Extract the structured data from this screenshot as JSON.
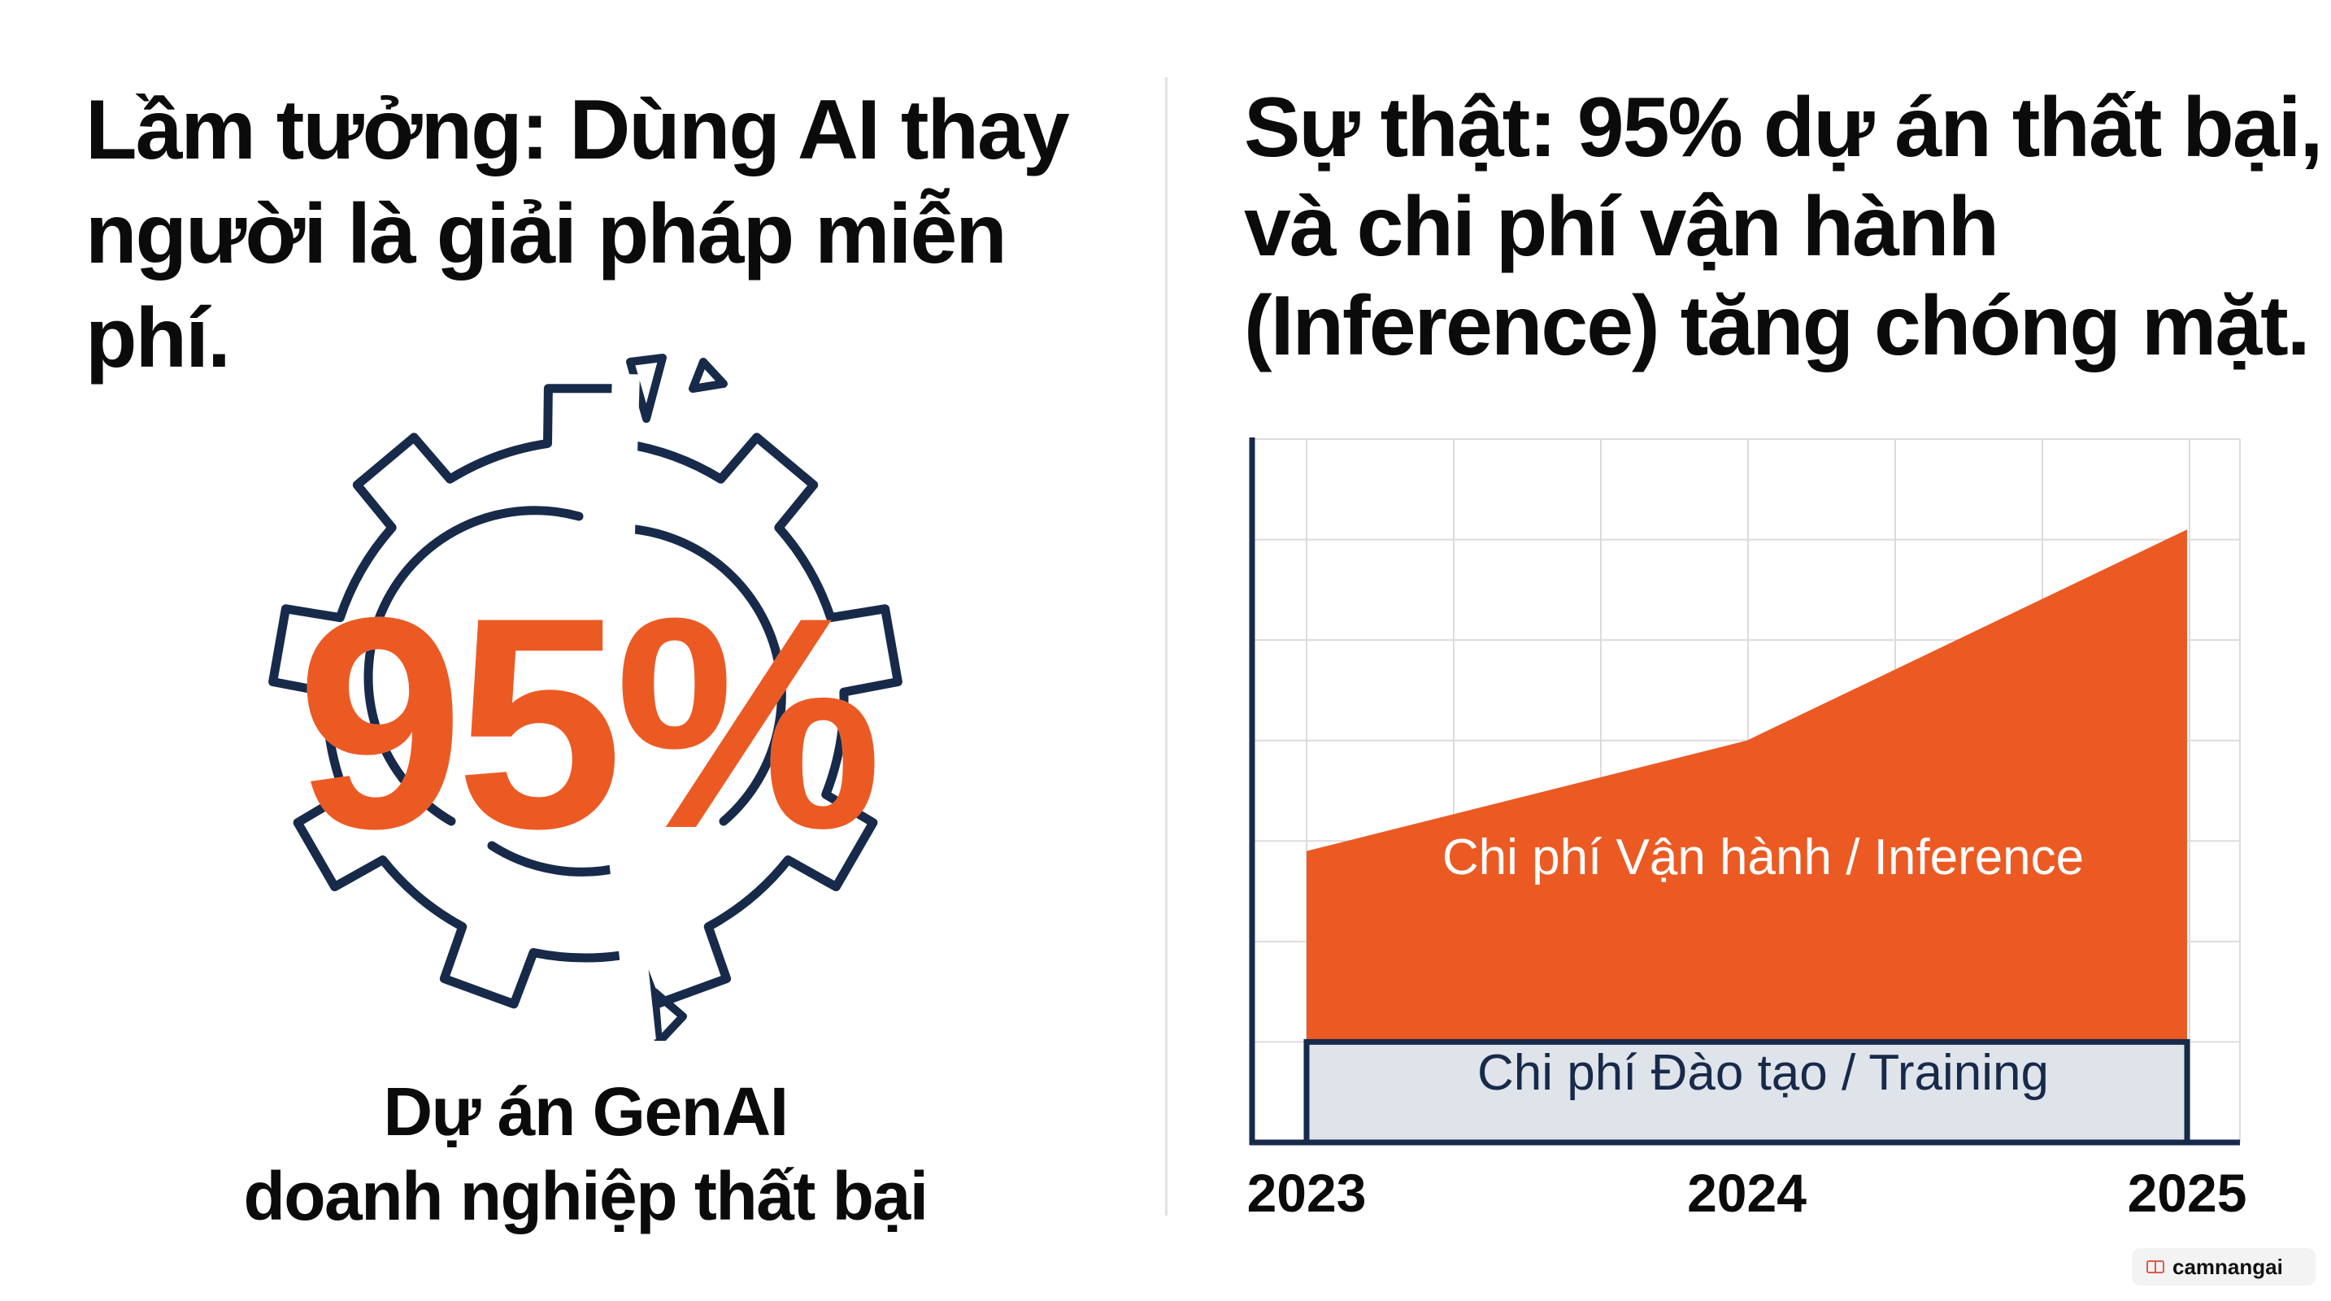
{
  "left_panel": {
    "title_line1": "Lầm tưởng: Dùng AI thay",
    "title_line2": "người là giải pháp miễn phí.",
    "stat_value": "95%",
    "caption_line1": "Dự án GenAI",
    "caption_line2": "doanh nghiệp thất bại",
    "icon": "broken-gear-icon"
  },
  "right_panel": {
    "title_line1": "Sự thật: 95% dự án thất bại,",
    "title_line2": "và chi phí vận hành",
    "title_line3": "(Inference) tăng chóng mặt."
  },
  "chart_data": {
    "type": "area",
    "stacked": true,
    "x": [
      "2023",
      "2024",
      "2025"
    ],
    "series": [
      {
        "name": "Chi phí Đào tạo / Training",
        "values": [
          1.0,
          1.0,
          1.0
        ],
        "color": "#dfe3ea"
      },
      {
        "name": "Chi phí Vận hành / Inference",
        "values": [
          1.9,
          3.0,
          5.1
        ],
        "color": "#ec5a24"
      }
    ],
    "ylim": [
      0,
      7
    ],
    "grid": true,
    "legend": "inline labels"
  },
  "colors": {
    "accent": "#ec5a24",
    "navy": "#172a4a",
    "grid": "#dcdcdc",
    "training_fill": "#dfe3ea"
  },
  "watermark": {
    "text": "camnangai"
  }
}
